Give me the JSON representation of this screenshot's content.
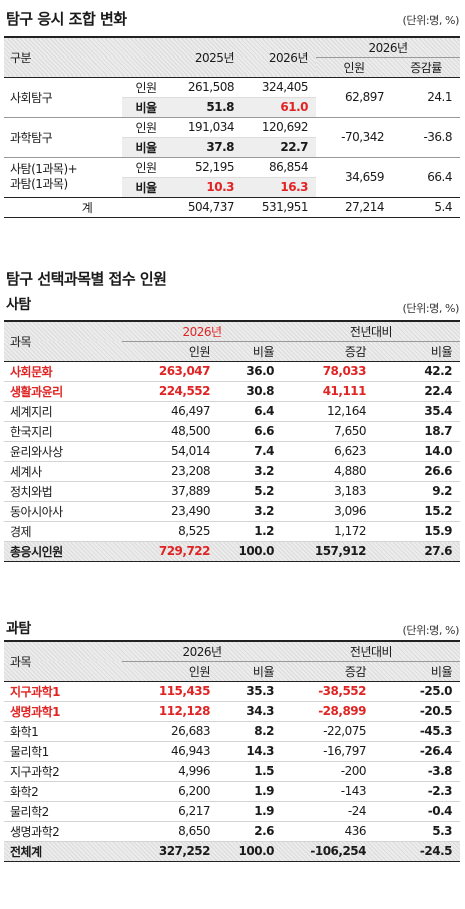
{
  "section1": {
    "title": "탐구 응시 조합 변화",
    "unit": "(단위:명, %)",
    "header": {
      "group": "구분",
      "y2025": "2025년",
      "y2026": "2026년",
      "y2026b": "2026년",
      "people": "인원",
      "rate": "증감률"
    },
    "rows": [
      {
        "name": "사회탐구",
        "people_label": "인원",
        "ratio_label": "비율",
        "p2025": "261,508",
        "p2026": "324,405",
        "r2025": "51.8",
        "r2026": "61.0",
        "diff": "62,897",
        "rate": "24.1"
      },
      {
        "name": "과학탐구",
        "people_label": "인원",
        "ratio_label": "비율",
        "p2025": "191,034",
        "p2026": "120,692",
        "r2025": "37.8",
        "r2026": "22.7",
        "diff": "-70,342",
        "rate": "-36.8"
      },
      {
        "name1": "사탐(1과목)+",
        "name2": "과탐(1과목)",
        "people_label": "인원",
        "ratio_label": "비율",
        "p2025": "52,195",
        "p2026": "86,854",
        "r2025": "10.3",
        "r2026": "16.3",
        "diff": "34,659",
        "rate": "66.4"
      }
    ],
    "total": {
      "label": "계",
      "p2025": "504,737",
      "p2026": "531,951",
      "diff": "27,214",
      "rate": "5.4"
    }
  },
  "section2": {
    "title": "탐구 선택과목별 접수 인원",
    "sub": "사탐",
    "unit": "(단위:명, %)",
    "header": {
      "subject": "과목",
      "y2026": "2026년",
      "prev": "전년대비",
      "people": "인원",
      "ratio": "비율",
      "change": "증감",
      "ratio2": "비율"
    },
    "rows": [
      {
        "name": "사회문화",
        "people": "263,047",
        "ratio": "36.0",
        "change": "78,033",
        "rate": "42.2",
        "hl": true
      },
      {
        "name": "생활과윤리",
        "people": "224,552",
        "ratio": "30.8",
        "change": "41,111",
        "rate": "22.4",
        "hl": true
      },
      {
        "name": "세계지리",
        "people": "46,497",
        "ratio": "6.4",
        "change": "12,164",
        "rate": "35.4"
      },
      {
        "name": "한국지리",
        "people": "48,500",
        "ratio": "6.6",
        "change": "7,650",
        "rate": "18.7"
      },
      {
        "name": "윤리와사상",
        "people": "54,014",
        "ratio": "7.4",
        "change": "6,623",
        "rate": "14.0"
      },
      {
        "name": "세계사",
        "people": "23,208",
        "ratio": "3.2",
        "change": "4,880",
        "rate": "26.6"
      },
      {
        "name": "정치와법",
        "people": "37,889",
        "ratio": "5.2",
        "change": "3,183",
        "rate": "9.2"
      },
      {
        "name": "동아시아사",
        "people": "23,490",
        "ratio": "3.2",
        "change": "3,096",
        "rate": "15.2"
      },
      {
        "name": "경제",
        "people": "8,525",
        "ratio": "1.2",
        "change": "1,172",
        "rate": "15.9"
      }
    ],
    "total": {
      "name": "총응시인원",
      "people": "729,722",
      "ratio": "100.0",
      "change": "157,912",
      "rate": "27.6"
    }
  },
  "section3": {
    "sub": "과탐",
    "unit": "(단위:명, %)",
    "header": {
      "subject": "과목",
      "y2026": "2026년",
      "prev": "전년대비",
      "people": "인원",
      "ratio": "비율",
      "change": "증감",
      "ratio2": "비율"
    },
    "rows": [
      {
        "name": "지구과학1",
        "people": "115,435",
        "ratio": "35.3",
        "change": "-38,552",
        "rate": "-25.0",
        "hl": true
      },
      {
        "name": "생명과학1",
        "people": "112,128",
        "ratio": "34.3",
        "change": "-28,899",
        "rate": "-20.5",
        "hl": true
      },
      {
        "name": "화학1",
        "people": "26,683",
        "ratio": "8.2",
        "change": "-22,075",
        "rate": "-45.3"
      },
      {
        "name": "물리학1",
        "people": "46,943",
        "ratio": "14.3",
        "change": "-16,797",
        "rate": "-26.4"
      },
      {
        "name": "지구과학2",
        "people": "4,996",
        "ratio": "1.5",
        "change": "-200",
        "rate": "-3.8"
      },
      {
        "name": "화학2",
        "people": "6,200",
        "ratio": "1.9",
        "change": "-143",
        "rate": "-2.3"
      },
      {
        "name": "물리학2",
        "people": "6,217",
        "ratio": "1.9",
        "change": "-24",
        "rate": "-0.4"
      },
      {
        "name": "생명과학2",
        "people": "8,650",
        "ratio": "2.6",
        "change": "436",
        "rate": "5.3"
      }
    ],
    "total": {
      "name": "전체계",
      "people": "327,252",
      "ratio": "100.0",
      "change": "-106,254",
      "rate": "-24.5"
    }
  }
}
